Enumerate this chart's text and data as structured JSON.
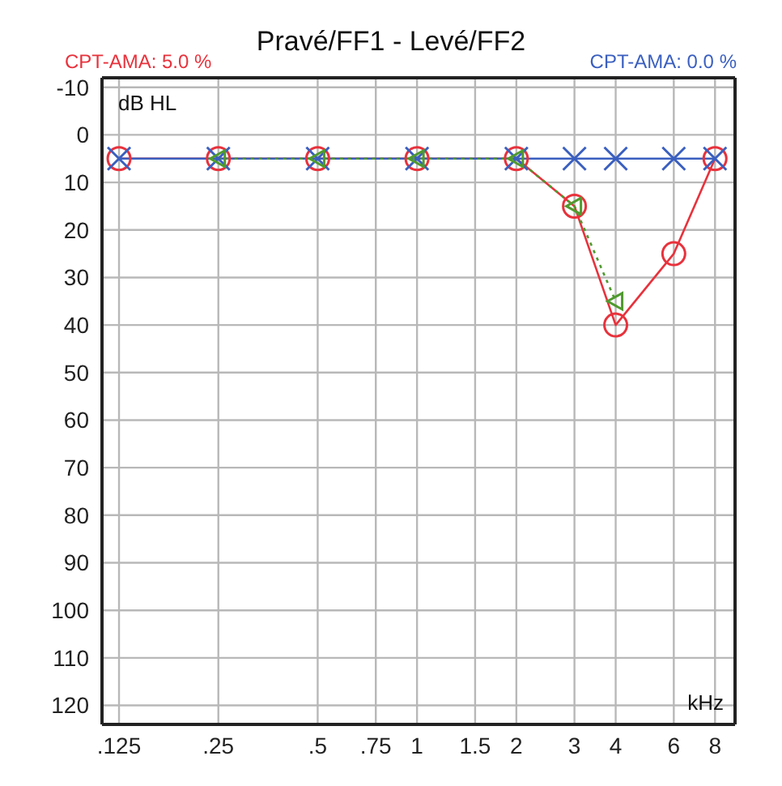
{
  "chart_data": {
    "type": "line",
    "title": "Pravé/FF1 - Levé/FF2",
    "xlabel": "kHz",
    "ylabel": "dB HL",
    "annotations": [
      "CPT-AMA: 5.0 %",
      "CPT-AMA: 0.0 %"
    ],
    "log": "x",
    "xlim": [
      0.111,
      9.2
    ],
    "xticks": [
      {
        "value": 0.125,
        "label": ".125"
      },
      {
        "value": 0.25,
        "label": ".25"
      },
      {
        "value": 0.5,
        "label": ".5"
      },
      {
        "value": 0.75,
        "label": ".75"
      },
      1,
      1.5,
      2,
      3,
      4,
      6,
      8
    ],
    "ylim": [
      124,
      -12
    ],
    "yticks": [
      -10,
      0,
      10,
      20,
      30,
      40,
      50,
      60,
      70,
      80,
      90,
      100,
      110,
      120
    ],
    "grid": true,
    "legend": false,
    "series": [
      {
        "color": "#e8323c",
        "marker": "circle",
        "line_style": "solid",
        "x": [
          0.125,
          0.25,
          0.5,
          1,
          2,
          3,
          4,
          6,
          8
        ],
        "values": [
          5,
          5,
          5,
          5,
          5,
          15,
          40,
          25,
          5
        ]
      },
      {
        "color": "#3a5fbf",
        "marker": "cross",
        "line_style": "solid",
        "x": [
          0.125,
          0.25,
          0.5,
          1,
          2,
          3,
          4,
          6,
          8
        ],
        "values": [
          5,
          5,
          5,
          5,
          5,
          5,
          5,
          5,
          5
        ]
      },
      {
        "color": "#4f9a2e",
        "marker": "triangle",
        "line_style": "dotted",
        "x": [
          0.25,
          0.5,
          1,
          2,
          3,
          4
        ],
        "values": [
          5,
          5,
          5,
          5,
          15,
          35
        ]
      }
    ]
  }
}
